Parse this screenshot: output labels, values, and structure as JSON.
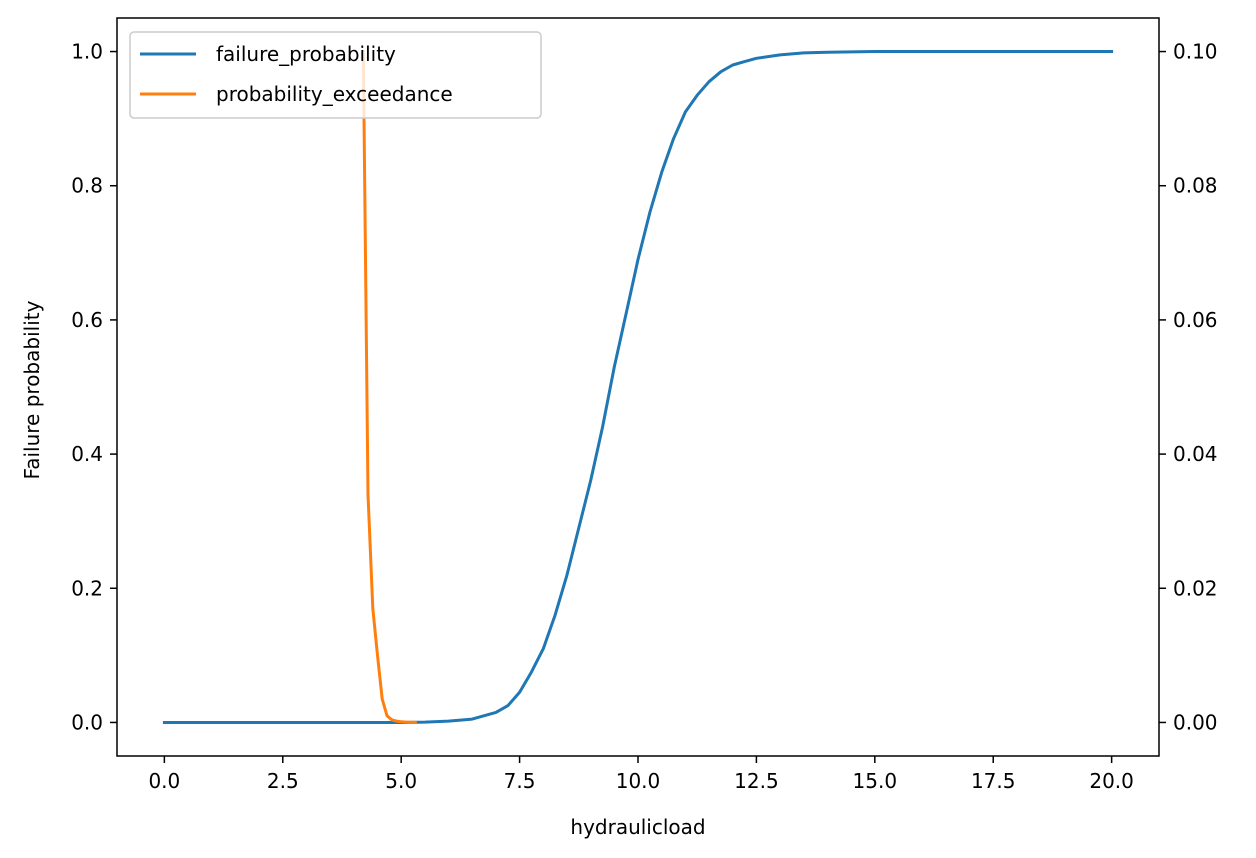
{
  "chart_data": {
    "type": "line",
    "title": "",
    "xlabel": "hydraulicload",
    "ylabel": "Failure probability",
    "y2label": "",
    "xlim": [
      -1.0,
      21.0
    ],
    "ylim": [
      -0.05,
      1.05
    ],
    "y2lim": [
      -0.005,
      0.105
    ],
    "xticks": [
      0.0,
      2.5,
      5.0,
      7.5,
      10.0,
      12.5,
      15.0,
      17.5,
      20.0
    ],
    "xtick_labels": [
      "0.0",
      "2.5",
      "5.0",
      "7.5",
      "10.0",
      "12.5",
      "15.0",
      "17.5",
      "20.0"
    ],
    "yticks": [
      0.0,
      0.2,
      0.4,
      0.6,
      0.8,
      1.0
    ],
    "ytick_labels": [
      "0.0",
      "0.2",
      "0.4",
      "0.6",
      "0.8",
      "1.0"
    ],
    "y2ticks": [
      0.0,
      0.02,
      0.04,
      0.06,
      0.08,
      0.1
    ],
    "y2tick_labels": [
      "0.00",
      "0.02",
      "0.04",
      "0.06",
      "0.08",
      "0.10"
    ],
    "grid": false,
    "legend": {
      "placement": "top-left",
      "entries": [
        "failure_probability",
        "probability_exceedance"
      ]
    },
    "series": [
      {
        "name": "failure_probability",
        "axis": "left",
        "color": "#1f77b4",
        "x": [
          0,
          1,
          2,
          3,
          4,
          5,
          5.5,
          6,
          6.5,
          7,
          7.25,
          7.5,
          7.75,
          8,
          8.25,
          8.5,
          8.75,
          9,
          9.25,
          9.5,
          9.75,
          10,
          10.25,
          10.5,
          10.75,
          11,
          11.25,
          11.5,
          11.75,
          12,
          12.25,
          12.5,
          13,
          13.5,
          14,
          15,
          16,
          17,
          18,
          19,
          20
        ],
        "y": [
          0,
          0,
          0,
          0,
          0,
          0,
          0.0005,
          0.002,
          0.005,
          0.015,
          0.025,
          0.045,
          0.075,
          0.11,
          0.16,
          0.22,
          0.29,
          0.36,
          0.44,
          0.53,
          0.61,
          0.69,
          0.76,
          0.82,
          0.87,
          0.91,
          0.935,
          0.955,
          0.97,
          0.98,
          0.985,
          0.99,
          0.995,
          0.998,
          0.999,
          1.0,
          1.0,
          1.0,
          1.0,
          1.0,
          1.0
        ]
      },
      {
        "name": "probability_exceedance",
        "axis": "right",
        "color": "#ff7f0e",
        "x": [
          4.2,
          4.3,
          4.4,
          4.5,
          4.6,
          4.7,
          4.8,
          4.9,
          5.0,
          5.1,
          5.2,
          5.3
        ],
        "y": [
          0.1,
          0.034,
          0.017,
          0.01,
          0.0035,
          0.001,
          0.0004,
          0.0002,
          0.0001,
          5e-05,
          2e-05,
          1e-05
        ]
      }
    ]
  }
}
